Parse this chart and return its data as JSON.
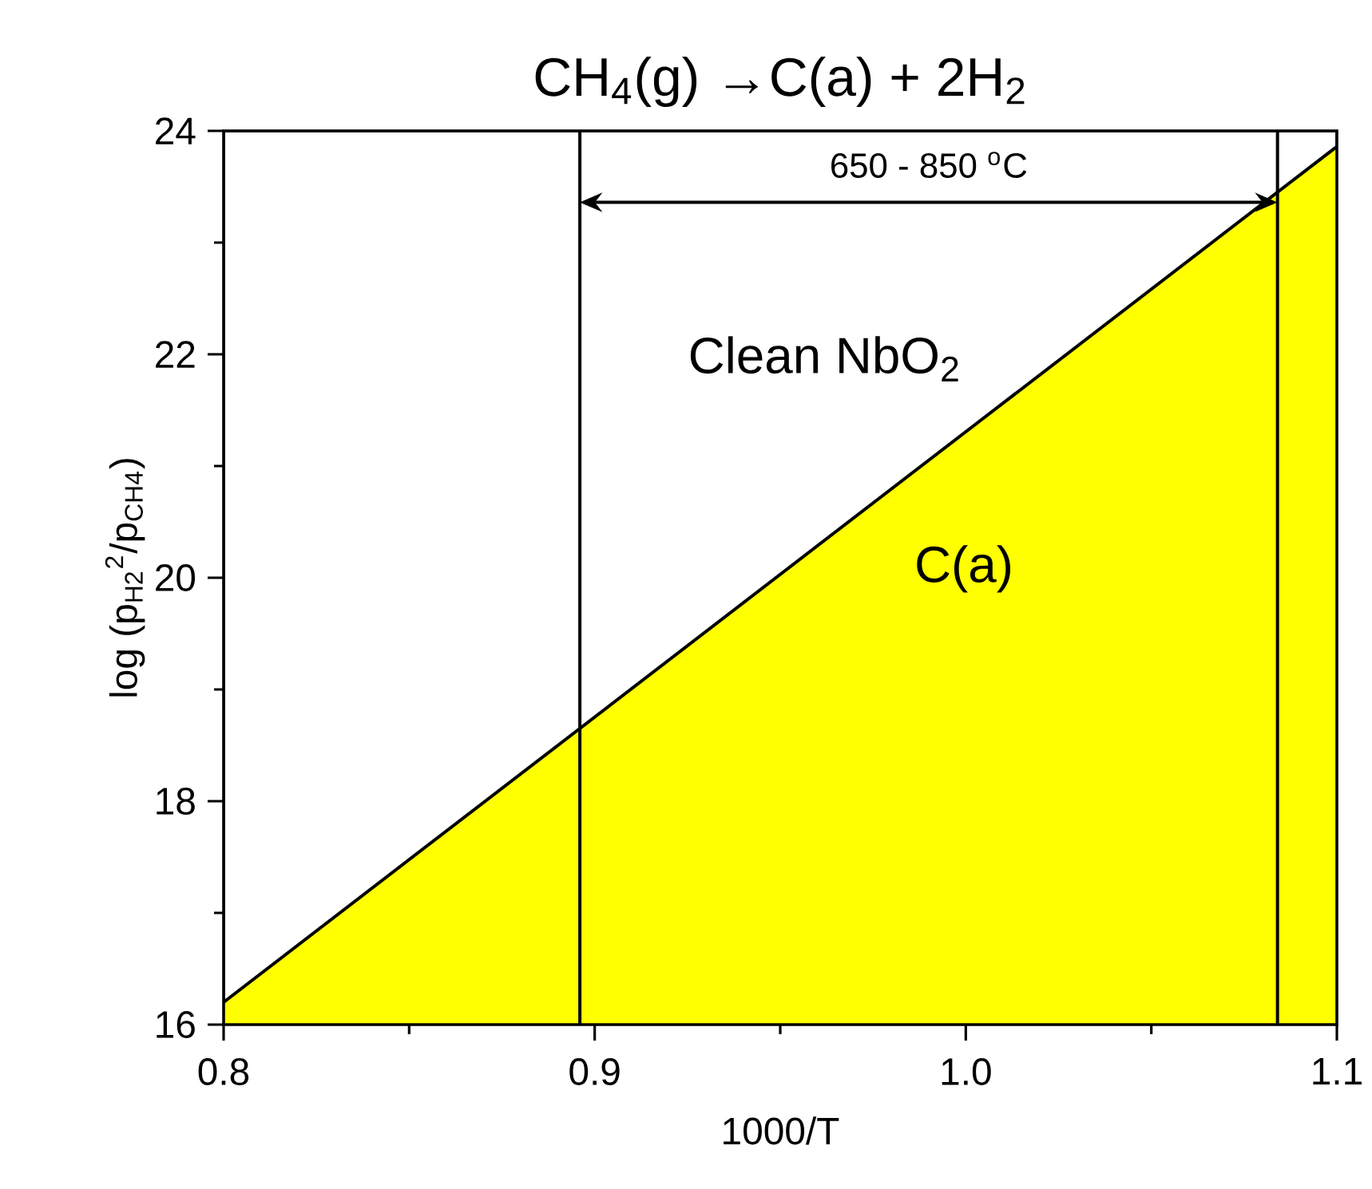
{
  "chart_data": {
    "type": "area",
    "title": "CH$_{4}$(g) →C(a) + 2H$_{2}$",
    "xlabel": "1000/T",
    "ylabel": "log (p$_{H2}$$^{2}$/p$_{CH4}$)",
    "x": [
      0.8,
      1.1
    ],
    "series": [
      {
        "color": "#ffff00",
        "values": [
          16.2,
          23.86
        ]
      }
    ],
    "xlim": [
      0.8,
      1.1
    ],
    "ylim": [
      16,
      24
    ],
    "xticks": [
      0.8,
      0.9,
      {
        "value": 1.0,
        "label": "1.0"
      },
      1.1
    ],
    "yticks": [
      16,
      18,
      20,
      22,
      24
    ],
    "ref_lines": [
      {
        "axis": "x",
        "value": 0.896,
        "color": "#000000"
      },
      {
        "axis": "x",
        "value": 1.084,
        "color": "#000000"
      }
    ],
    "annotations": [
      "650 - 850 $^{o}$C",
      "Clean NbO$_{2}$",
      "C(a)"
    ],
    "grid": false
  }
}
